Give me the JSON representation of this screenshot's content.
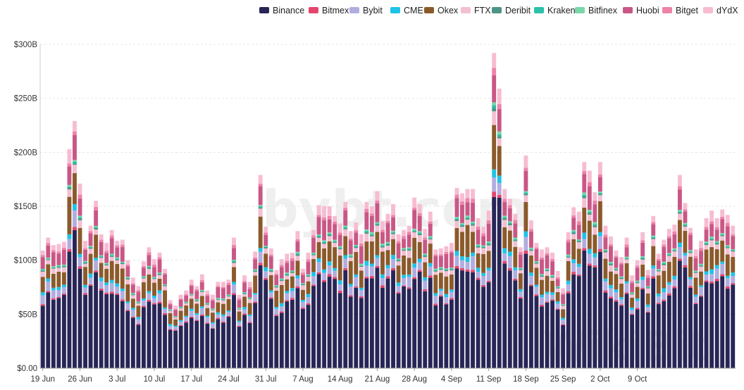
{
  "chart_data": {
    "type": "bar",
    "stacked": true,
    "legend_position": "top-right",
    "grid": {
      "horizontal": true,
      "vertical": false
    },
    "ylim": [
      0,
      300
    ],
    "y_ticks": [
      0,
      50,
      100,
      150,
      200,
      250,
      300
    ],
    "y_tick_labels": [
      "$0.00",
      "$50B",
      "$100B",
      "$150B",
      "$200B",
      "$250B",
      "$300B"
    ],
    "x_tick_labels": [
      {
        "index": 0,
        "label": "19 Jun"
      },
      {
        "index": 7,
        "label": "26 Jun"
      },
      {
        "index": 14,
        "label": "3 Jul"
      },
      {
        "index": 21,
        "label": "10 Jul"
      },
      {
        "index": 28,
        "label": "17 Jul"
      },
      {
        "index": 35,
        "label": "24 Jul"
      },
      {
        "index": 42,
        "label": "31 Jul"
      },
      {
        "index": 49,
        "label": "7 Aug"
      },
      {
        "index": 56,
        "label": "14 Aug"
      },
      {
        "index": 63,
        "label": "21 Aug"
      },
      {
        "index": 70,
        "label": "28 Aug"
      },
      {
        "index": 77,
        "label": "4 Sep"
      },
      {
        "index": 84,
        "label": "11 Sep"
      },
      {
        "index": 91,
        "label": "18 Sep"
      },
      {
        "index": 98,
        "label": "25 Sep"
      },
      {
        "index": 105,
        "label": "2 Oct"
      },
      {
        "index": 112,
        "label": "9 Oct"
      }
    ],
    "totals": [
      109,
      121,
      114,
      115,
      117,
      203,
      229,
      171,
      118,
      132,
      155,
      124,
      116,
      128,
      118,
      119,
      100,
      84,
      76,
      99,
      112,
      101,
      107,
      92,
      63,
      58,
      68,
      72,
      82,
      76,
      87,
      72,
      68,
      80,
      80,
      82,
      121,
      68,
      86,
      80,
      108,
      179,
      131,
      111,
      91,
      101,
      106,
      107,
      127,
      92,
      107,
      128,
      151,
      150,
      150,
      141,
      134,
      154,
      127,
      135,
      124,
      154,
      150,
      164,
      136,
      143,
      152,
      124,
      128,
      132,
      158,
      152,
      129,
      145,
      110,
      111,
      113,
      116,
      167,
      162,
      166,
      166,
      139,
      131,
      146,
      292,
      259,
      166,
      157,
      143,
      112,
      197,
      137,
      116,
      110,
      112,
      107,
      90,
      74,
      126,
      149,
      145,
      191,
      183,
      163,
      191,
      132,
      122,
      109,
      103,
      121,
      86,
      100,
      126,
      91,
      141,
      106,
      119,
      129,
      133,
      179,
      153,
      130,
      110,
      118,
      139,
      146,
      139,
      147,
      142,
      132
    ]
  },
  "legend": {
    "series": [
      {
        "name": "Binance",
        "color": "#282556"
      },
      {
        "name": "Bitmex",
        "color": "#e5456d"
      },
      {
        "name": "Bybit",
        "color": "#b2ade0"
      },
      {
        "name": "CME",
        "color": "#20c3e8"
      },
      {
        "name": "Okex",
        "color": "#8b5a2b"
      },
      {
        "name": "FTX",
        "color": "#f4bfd0"
      },
      {
        "name": "Deribit",
        "color": "#4d9486"
      },
      {
        "name": "Kraken",
        "color": "#2ac2a8"
      },
      {
        "name": "Bitfinex",
        "color": "#79d7a8"
      },
      {
        "name": "Huobi",
        "color": "#c95786"
      },
      {
        "name": "Bitget",
        "color": "#ee83a9"
      },
      {
        "name": "dYdX",
        "color": "#f7bcd2"
      }
    ]
  }
}
